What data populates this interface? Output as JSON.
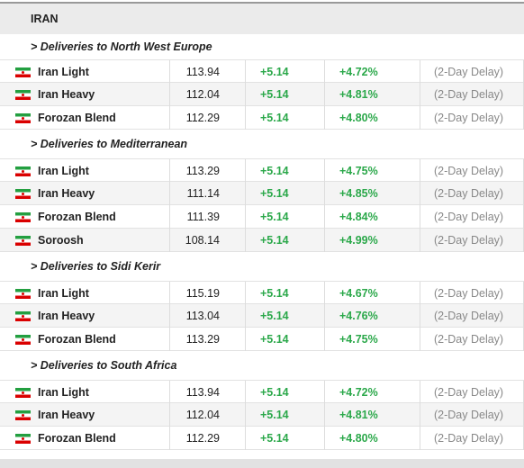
{
  "header": {
    "title": "IRAN"
  },
  "sections": [
    {
      "title": "> Deliveries to North West Europe",
      "rows": [
        [
          "Iran Light",
          "113.94",
          "+5.14",
          "+4.72%",
          "(2-Day Delay)"
        ],
        [
          "Iran Heavy",
          "112.04",
          "+5.14",
          "+4.81%",
          "(2-Day Delay)"
        ],
        [
          "Forozan Blend",
          "112.29",
          "+5.14",
          "+4.80%",
          "(2-Day Delay)"
        ]
      ]
    },
    {
      "title": "> Deliveries to Mediterranean",
      "rows": [
        [
          "Iran Light",
          "113.29",
          "+5.14",
          "+4.75%",
          "(2-Day Delay)"
        ],
        [
          "Iran Heavy",
          "111.14",
          "+5.14",
          "+4.85%",
          "(2-Day Delay)"
        ],
        [
          "Forozan Blend",
          "111.39",
          "+5.14",
          "+4.84%",
          "(2-Day Delay)"
        ],
        [
          "Soroosh",
          "108.14",
          "+5.14",
          "+4.99%",
          "(2-Day Delay)"
        ]
      ]
    },
    {
      "title": "> Deliveries to Sidi Kerir",
      "rows": [
        [
          "Iran Light",
          "115.19",
          "+5.14",
          "+4.67%",
          "(2-Day Delay)"
        ],
        [
          "Iran Heavy",
          "113.04",
          "+5.14",
          "+4.76%",
          "(2-Day Delay)"
        ],
        [
          "Forozan Blend",
          "113.29",
          "+5.14",
          "+4.75%",
          "(2-Day Delay)"
        ]
      ]
    },
    {
      "title": "> Deliveries to South Africa",
      "rows": [
        [
          "Iran Light",
          "113.94",
          "+5.14",
          "+4.72%",
          "(2-Day Delay)"
        ],
        [
          "Iran Heavy",
          "112.04",
          "+5.14",
          "+4.81%",
          "(2-Day Delay)"
        ],
        [
          "Forozan Blend",
          "112.29",
          "+5.14",
          "+4.80%",
          "(2-Day Delay)"
        ]
      ]
    }
  ]
}
